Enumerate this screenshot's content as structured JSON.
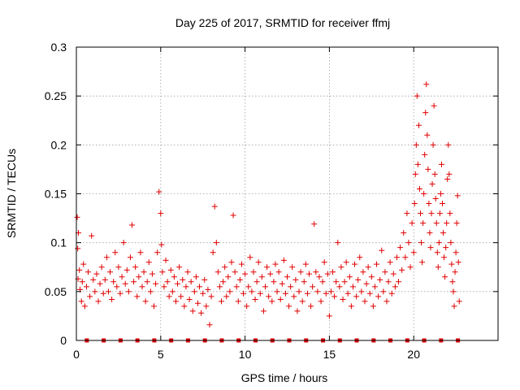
{
  "chart_data": {
    "type": "scatter",
    "title": "Day 225 of 2017, SRMTID for receiver ffmj",
    "xlabel": "GPS time / hours",
    "ylabel": "SRMTID / TECUs",
    "xlim": [
      0,
      25
    ],
    "ylim": [
      0,
      0.3
    ],
    "x_ticks": [
      0,
      5,
      10,
      15,
      20
    ],
    "x_tick_labels": [
      "0",
      "5",
      "10",
      "15",
      "20"
    ],
    "y_ticks": [
      0,
      0.05,
      0.1,
      0.15,
      0.2,
      0.25,
      0.3
    ],
    "y_tick_labels": [
      "0",
      "0.05",
      "0.1",
      "0.15",
      "0.2",
      "0.25",
      "0.3"
    ],
    "grid": true,
    "marker": "plus",
    "color": "#e00000",
    "zero_markers": {
      "marker": "square",
      "x": [
        0.62,
        1.62,
        2.62,
        3.62,
        4.62,
        5.62,
        6.62,
        7.62,
        8.62,
        9.62,
        10.62,
        11.62,
        12.62,
        13.62,
        14.62,
        15.62,
        16.62,
        17.62,
        18.62,
        19.62,
        20.62,
        21.62,
        22.62
      ],
      "y": 0
    },
    "series": [
      {
        "values": [
          [
            0.05,
            0.126
          ],
          [
            0.08,
            0.094
          ],
          [
            0.1,
            0.063
          ],
          [
            0.12,
            0.11
          ],
          [
            0.18,
            0.072
          ],
          [
            0.22,
            0.052
          ],
          [
            0.3,
            0.04
          ],
          [
            0.35,
            0.06
          ],
          [
            0.42,
            0.078
          ],
          [
            0.5,
            0.035
          ],
          [
            0.6,
            0.055
          ],
          [
            0.7,
            0.07
          ],
          [
            0.8,
            0.045
          ],
          [
            0.9,
            0.107
          ],
          [
            1.0,
            0.062
          ],
          [
            1.1,
            0.05
          ],
          [
            1.2,
            0.068
          ],
          [
            1.3,
            0.04
          ],
          [
            1.4,
            0.058
          ],
          [
            1.5,
            0.075
          ],
          [
            1.6,
            0.048
          ],
          [
            1.7,
            0.062
          ],
          [
            1.8,
            0.085
          ],
          [
            1.9,
            0.05
          ],
          [
            2.0,
            0.07
          ],
          [
            2.1,
            0.042
          ],
          [
            2.2,
            0.06
          ],
          [
            2.3,
            0.09
          ],
          [
            2.4,
            0.055
          ],
          [
            2.5,
            0.075
          ],
          [
            2.6,
            0.048
          ],
          [
            2.7,
            0.065
          ],
          [
            2.8,
            0.1
          ],
          [
            2.9,
            0.058
          ],
          [
            3.0,
            0.072
          ],
          [
            3.1,
            0.05
          ],
          [
            3.2,
            0.085
          ],
          [
            3.3,
            0.118
          ],
          [
            3.4,
            0.06
          ],
          [
            3.5,
            0.075
          ],
          [
            3.6,
            0.045
          ],
          [
            3.7,
            0.065
          ],
          [
            3.8,
            0.09
          ],
          [
            3.9,
            0.055
          ],
          [
            4.0,
            0.07
          ],
          [
            4.1,
            0.04
          ],
          [
            4.2,
            0.06
          ],
          [
            4.3,
            0.08
          ],
          [
            4.4,
            0.05
          ],
          [
            4.5,
            0.068
          ],
          [
            4.6,
            0.035
          ],
          [
            4.7,
            0.058
          ],
          [
            4.8,
            0.09
          ],
          [
            4.9,
            0.152
          ],
          [
            5.0,
            0.13
          ],
          [
            5.05,
            0.098
          ],
          [
            5.1,
            0.07
          ],
          [
            5.2,
            0.055
          ],
          [
            5.3,
            0.082
          ],
          [
            5.4,
            0.06
          ],
          [
            5.5,
            0.045
          ],
          [
            5.6,
            0.072
          ],
          [
            5.7,
            0.05
          ],
          [
            5.8,
            0.065
          ],
          [
            5.9,
            0.04
          ],
          [
            6.0,
            0.058
          ],
          [
            6.1,
            0.075
          ],
          [
            6.2,
            0.045
          ],
          [
            6.3,
            0.062
          ],
          [
            6.4,
            0.035
          ],
          [
            6.5,
            0.055
          ],
          [
            6.6,
            0.07
          ],
          [
            6.7,
            0.042
          ],
          [
            6.8,
            0.06
          ],
          [
            6.9,
            0.03
          ],
          [
            7.0,
            0.05
          ],
          [
            7.1,
            0.065
          ],
          [
            7.2,
            0.038
          ],
          [
            7.3,
            0.055
          ],
          [
            7.4,
            0.028
          ],
          [
            7.5,
            0.048
          ],
          [
            7.6,
            0.062
          ],
          [
            7.7,
            0.035
          ],
          [
            7.8,
            0.052
          ],
          [
            7.9,
            0.016
          ],
          [
            8.0,
            0.045
          ],
          [
            8.1,
            0.09
          ],
          [
            8.2,
            0.137
          ],
          [
            8.3,
            0.1
          ],
          [
            8.4,
            0.07
          ],
          [
            8.5,
            0.055
          ],
          [
            8.6,
            0.04
          ],
          [
            8.7,
            0.06
          ],
          [
            8.8,
            0.075
          ],
          [
            8.9,
            0.045
          ],
          [
            9.0,
            0.065
          ],
          [
            9.1,
            0.05
          ],
          [
            9.2,
            0.08
          ],
          [
            9.3,
            0.128
          ],
          [
            9.4,
            0.07
          ],
          [
            9.5,
            0.055
          ],
          [
            9.6,
            0.04
          ],
          [
            9.7,
            0.062
          ],
          [
            9.8,
            0.078
          ],
          [
            9.9,
            0.048
          ],
          [
            10.0,
            0.068
          ],
          [
            10.1,
            0.035
          ],
          [
            10.2,
            0.055
          ],
          [
            10.3,
            0.085
          ],
          [
            10.4,
            0.05
          ],
          [
            10.5,
            0.07
          ],
          [
            10.6,
            0.042
          ],
          [
            10.7,
            0.06
          ],
          [
            10.8,
            0.08
          ],
          [
            10.9,
            0.048
          ],
          [
            11.0,
            0.065
          ],
          [
            11.1,
            0.03
          ],
          [
            11.2,
            0.055
          ],
          [
            11.3,
            0.075
          ],
          [
            11.4,
            0.045
          ],
          [
            11.5,
            0.068
          ],
          [
            11.6,
            0.04
          ],
          [
            11.7,
            0.06
          ],
          [
            11.8,
            0.078
          ],
          [
            11.9,
            0.05
          ],
          [
            12.0,
            0.07
          ],
          [
            12.1,
            0.042
          ],
          [
            12.2,
            0.058
          ],
          [
            12.3,
            0.082
          ],
          [
            12.4,
            0.048
          ],
          [
            12.5,
            0.065
          ],
          [
            12.6,
            0.035
          ],
          [
            12.7,
            0.055
          ],
          [
            12.8,
            0.075
          ],
          [
            12.9,
            0.045
          ],
          [
            13.0,
            0.062
          ],
          [
            13.1,
            0.03
          ],
          [
            13.2,
            0.05
          ],
          [
            13.3,
            0.07
          ],
          [
            13.4,
            0.04
          ],
          [
            13.5,
            0.06
          ],
          [
            13.6,
            0.078
          ],
          [
            13.7,
            0.048
          ],
          [
            13.8,
            0.068
          ],
          [
            13.9,
            0.035
          ],
          [
            14.0,
            0.055
          ],
          [
            14.1,
            0.119
          ],
          [
            14.2,
            0.07
          ],
          [
            14.3,
            0.05
          ],
          [
            14.4,
            0.065
          ],
          [
            14.5,
            0.04
          ],
          [
            14.6,
            0.06
          ],
          [
            14.7,
            0.08
          ],
          [
            14.8,
            0.048
          ],
          [
            14.9,
            0.068
          ],
          [
            15.0,
            0.025
          ],
          [
            15.1,
            0.05
          ],
          [
            15.2,
            0.07
          ],
          [
            15.3,
            0.045
          ],
          [
            15.4,
            0.06
          ],
          [
            15.5,
            0.1
          ],
          [
            15.6,
            0.055
          ],
          [
            15.7,
            0.075
          ],
          [
            15.8,
            0.042
          ],
          [
            15.9,
            0.06
          ],
          [
            16.0,
            0.08
          ],
          [
            16.1,
            0.048
          ],
          [
            16.2,
            0.065
          ],
          [
            16.3,
            0.035
          ],
          [
            16.4,
            0.055
          ],
          [
            16.5,
            0.078
          ],
          [
            16.6,
            0.045
          ],
          [
            16.7,
            0.062
          ],
          [
            16.8,
            0.085
          ],
          [
            16.9,
            0.05
          ],
          [
            17.0,
            0.07
          ],
          [
            17.1,
            0.04
          ],
          [
            17.2,
            0.058
          ],
          [
            17.3,
            0.075
          ],
          [
            17.4,
            0.048
          ],
          [
            17.5,
            0.065
          ],
          [
            17.6,
            0.035
          ],
          [
            17.7,
            0.055
          ],
          [
            17.8,
            0.078
          ],
          [
            17.9,
            0.045
          ],
          [
            18.0,
            0.062
          ],
          [
            18.1,
            0.092
          ],
          [
            18.2,
            0.05
          ],
          [
            18.3,
            0.07
          ],
          [
            18.4,
            0.04
          ],
          [
            18.5,
            0.06
          ],
          [
            18.6,
            0.08
          ],
          [
            18.7,
            0.048
          ],
          [
            18.8,
            0.068
          ],
          [
            18.9,
            0.055
          ],
          [
            19.0,
            0.085
          ],
          [
            19.1,
            0.06
          ],
          [
            19.2,
            0.095
          ],
          [
            19.3,
            0.072
          ],
          [
            19.4,
            0.11
          ],
          [
            19.5,
            0.085
          ],
          [
            19.6,
            0.13
          ],
          [
            19.7,
            0.1
          ],
          [
            19.8,
            0.075
          ],
          [
            19.9,
            0.12
          ],
          [
            20.0,
            0.09
          ],
          [
            20.05,
            0.14
          ],
          [
            20.1,
            0.17
          ],
          [
            20.15,
            0.2
          ],
          [
            20.2,
            0.25
          ],
          [
            20.25,
            0.18
          ],
          [
            20.3,
            0.22
          ],
          [
            20.35,
            0.155
          ],
          [
            20.4,
            0.13
          ],
          [
            20.45,
            0.1
          ],
          [
            20.5,
            0.08
          ],
          [
            20.55,
            0.12
          ],
          [
            20.6,
            0.15
          ],
          [
            20.65,
            0.19
          ],
          [
            20.7,
            0.233
          ],
          [
            20.75,
            0.262
          ],
          [
            20.8,
            0.21
          ],
          [
            20.85,
            0.175
          ],
          [
            20.9,
            0.14
          ],
          [
            20.95,
            0.11
          ],
          [
            21.0,
            0.095
          ],
          [
            21.05,
            0.13
          ],
          [
            21.1,
            0.16
          ],
          [
            21.15,
            0.2
          ],
          [
            21.2,
            0.24
          ],
          [
            21.25,
            0.17
          ],
          [
            21.3,
            0.145
          ],
          [
            21.35,
            0.12
          ],
          [
            21.4,
            0.09
          ],
          [
            21.45,
            0.075
          ],
          [
            21.5,
            0.1
          ],
          [
            21.55,
            0.13
          ],
          [
            21.6,
            0.15
          ],
          [
            21.65,
            0.18
          ],
          [
            21.7,
            0.14
          ],
          [
            21.75,
            0.11
          ],
          [
            21.8,
            0.085
          ],
          [
            21.85,
            0.065
          ],
          [
            21.9,
            0.095
          ],
          [
            21.95,
            0.12
          ],
          [
            22.0,
            0.165
          ],
          [
            22.05,
            0.2
          ],
          [
            22.1,
            0.17
          ],
          [
            22.15,
            0.13
          ],
          [
            22.2,
            0.1
          ],
          [
            22.25,
            0.078
          ],
          [
            22.3,
            0.06
          ],
          [
            22.35,
            0.05
          ],
          [
            22.4,
            0.035
          ],
          [
            22.45,
            0.07
          ],
          [
            22.5,
            0.09
          ],
          [
            22.55,
            0.12
          ],
          [
            22.6,
            0.148
          ],
          [
            22.65,
            0.08
          ],
          [
            22.7,
            0.04
          ]
        ]
      }
    ]
  }
}
